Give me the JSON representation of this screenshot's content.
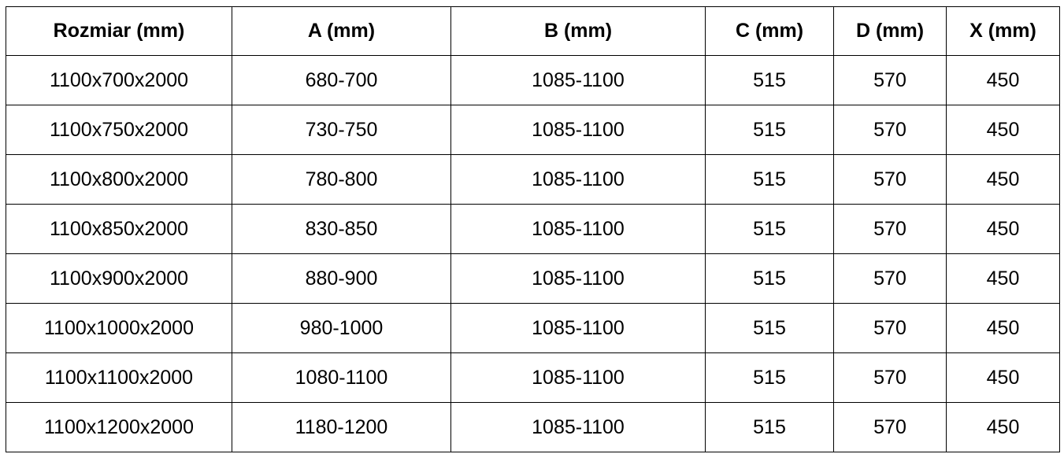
{
  "table": {
    "headers": [
      "Rozmiar (mm)",
      "A (mm)",
      "B (mm)",
      "C (mm)",
      "D (mm)",
      "X (mm)"
    ],
    "rows": [
      [
        "1100x700x2000",
        "680-700",
        "1085-1100",
        "515",
        "570",
        "450"
      ],
      [
        "1100x750x2000",
        "730-750",
        "1085-1100",
        "515",
        "570",
        "450"
      ],
      [
        "1100x800x2000",
        "780-800",
        "1085-1100",
        "515",
        "570",
        "450"
      ],
      [
        "1100x850x2000",
        "830-850",
        "1085-1100",
        "515",
        "570",
        "450"
      ],
      [
        "1100x900x2000",
        "880-900",
        "1085-1100",
        "515",
        "570",
        "450"
      ],
      [
        "1100x1000x2000",
        "980-1000",
        "1085-1100",
        "515",
        "570",
        "450"
      ],
      [
        "1100x1100x2000",
        "1080-1100",
        "1085-1100",
        "515",
        "570",
        "450"
      ],
      [
        "1100x1200x2000",
        "1180-1200",
        "1085-1100",
        "515",
        "570",
        "450"
      ]
    ]
  }
}
